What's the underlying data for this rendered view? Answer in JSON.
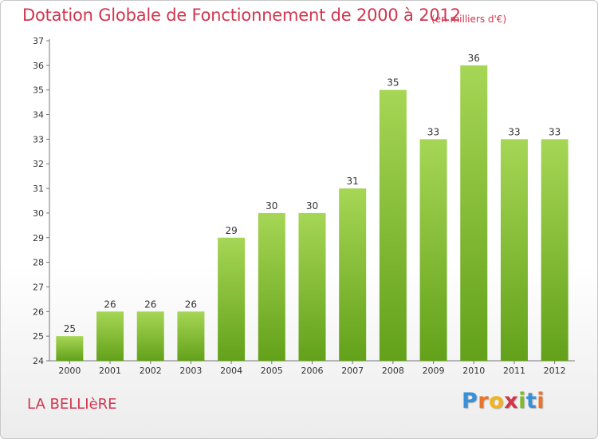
{
  "header": {
    "title": "Dotation Globale de Fonctionnement de 2000 à 2012",
    "subtitle": "(en milliers d'€)"
  },
  "footer": {
    "commune": "LA BELLIèRE",
    "logo": {
      "letters": [
        "P",
        "r",
        "o",
        "x",
        "i",
        "t",
        "i"
      ],
      "colors": [
        "#3a8fd6",
        "#e8742a",
        "#f2b21c",
        "#d2354e",
        "#7fba2a",
        "#3a8fd6",
        "#e8742a"
      ]
    }
  },
  "colors": {
    "bar_top": "#a6d655",
    "bar_bottom": "#63a11a",
    "accent": "#d2354e"
  },
  "chart_data": {
    "type": "bar",
    "title": "Dotation Globale de Fonctionnement de 2000 à 2012",
    "subtitle": "(en milliers d'€)",
    "xlabel": "",
    "ylabel": "",
    "categories": [
      "2000",
      "2001",
      "2002",
      "2003",
      "2004",
      "2005",
      "2006",
      "2007",
      "2008",
      "2009",
      "2010",
      "2011",
      "2012"
    ],
    "values": [
      25,
      26,
      26,
      26,
      29,
      30,
      30,
      31,
      35,
      33,
      36,
      33,
      33
    ],
    "ylim": [
      24,
      37
    ],
    "yticks": [
      24,
      25,
      26,
      27,
      28,
      29,
      30,
      31,
      32,
      33,
      34,
      35,
      36,
      37
    ],
    "grid": false,
    "legend": "none"
  }
}
